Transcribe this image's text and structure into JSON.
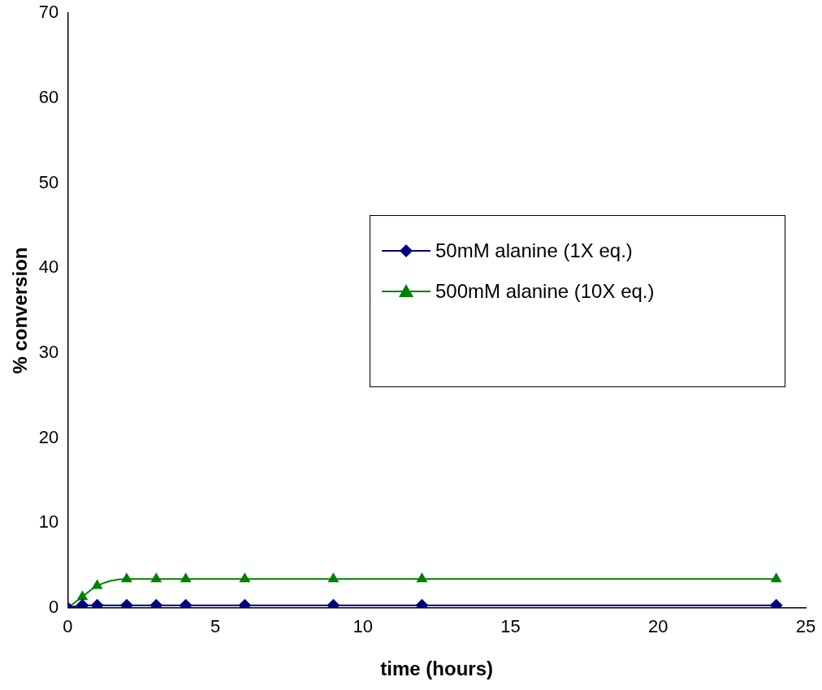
{
  "chart_data": {
    "type": "line",
    "xlabel": "time (hours)",
    "ylabel": "% conversion",
    "xlim": [
      0,
      25
    ],
    "xticks": [
      0,
      5,
      10,
      15,
      20,
      25
    ],
    "ylim": [
      0,
      70
    ],
    "yticks": [
      0,
      10,
      20,
      30,
      40,
      50,
      60,
      70
    ],
    "grid": false,
    "legend": "right",
    "line_style": "solid",
    "series": [
      {
        "name": "50mM alanine (1X eq.)",
        "color": "#000080",
        "marker": "diamond",
        "x": [
          0,
          0.5,
          1,
          2,
          3,
          4,
          6,
          9,
          12,
          24
        ],
        "values": [
          0,
          0.3,
          0.3,
          0.3,
          0.3,
          0.3,
          0.3,
          0.3,
          0.3,
          0.3
        ]
      },
      {
        "name": "500mM alanine (10X eq.)",
        "color": "#008000",
        "marker": "triangle",
        "x": [
          0,
          0.5,
          1,
          2,
          3,
          4,
          6,
          9,
          12,
          24
        ],
        "values": [
          0,
          1.3,
          2.6,
          3.4,
          3.4,
          3.4,
          3.4,
          3.4,
          3.4,
          3.4
        ]
      },
      {
        "color": "#ff0000",
        "marker": "triangle",
        "x": [
          0
        ],
        "values": [
          0
        ]
      }
    ]
  }
}
